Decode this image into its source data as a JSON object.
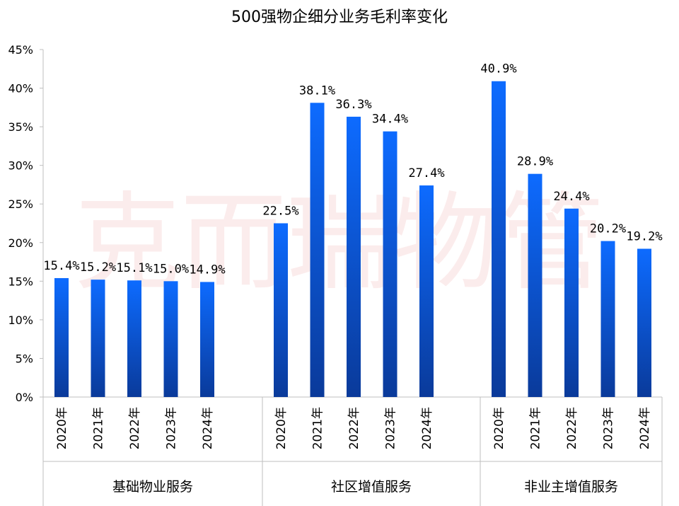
{
  "title": "500强物企细分业务毛利率变化",
  "watermark": "克而瑞物管",
  "chart_data": {
    "type": "bar",
    "title": "500强物企细分业务毛利率变化",
    "ylim": [
      0,
      45
    ],
    "y_ticks": [
      "0%",
      "5%",
      "10%",
      "15%",
      "20%",
      "25%",
      "30%",
      "35%",
      "40%",
      "45%"
    ],
    "grid": false,
    "groups": [
      {
        "name": "基础物业服务",
        "categories": [
          "2020年",
          "2021年",
          "2022年",
          "2023年",
          "2024年"
        ],
        "values": [
          15.4,
          15.2,
          15.1,
          15.0,
          14.9
        ],
        "labels": [
          "15.4%",
          "15.2%",
          "15.1%",
          "15.0%",
          "14.9%"
        ]
      },
      {
        "name": "社区增值服务",
        "categories": [
          "2020年",
          "2021年",
          "2022年",
          "2023年",
          "2024年"
        ],
        "values": [
          22.5,
          38.1,
          36.3,
          34.4,
          27.4
        ],
        "labels": [
          "22.5%",
          "38.1%",
          "36.3%",
          "34.4%",
          "27.4%"
        ]
      },
      {
        "name": "非业主增值服务",
        "categories": [
          "2020年",
          "2021年",
          "2022年",
          "2023年",
          "2024年"
        ],
        "values": [
          40.9,
          28.9,
          24.4,
          20.2,
          19.2
        ],
        "labels": [
          "40.9%",
          "28.9%",
          "24.4%",
          "20.2%",
          "19.2%"
        ]
      }
    ],
    "colors": {
      "bar_top": "#0d6bff",
      "bar_bottom": "#0a3a9a",
      "axis": "#bfbfbf"
    }
  }
}
